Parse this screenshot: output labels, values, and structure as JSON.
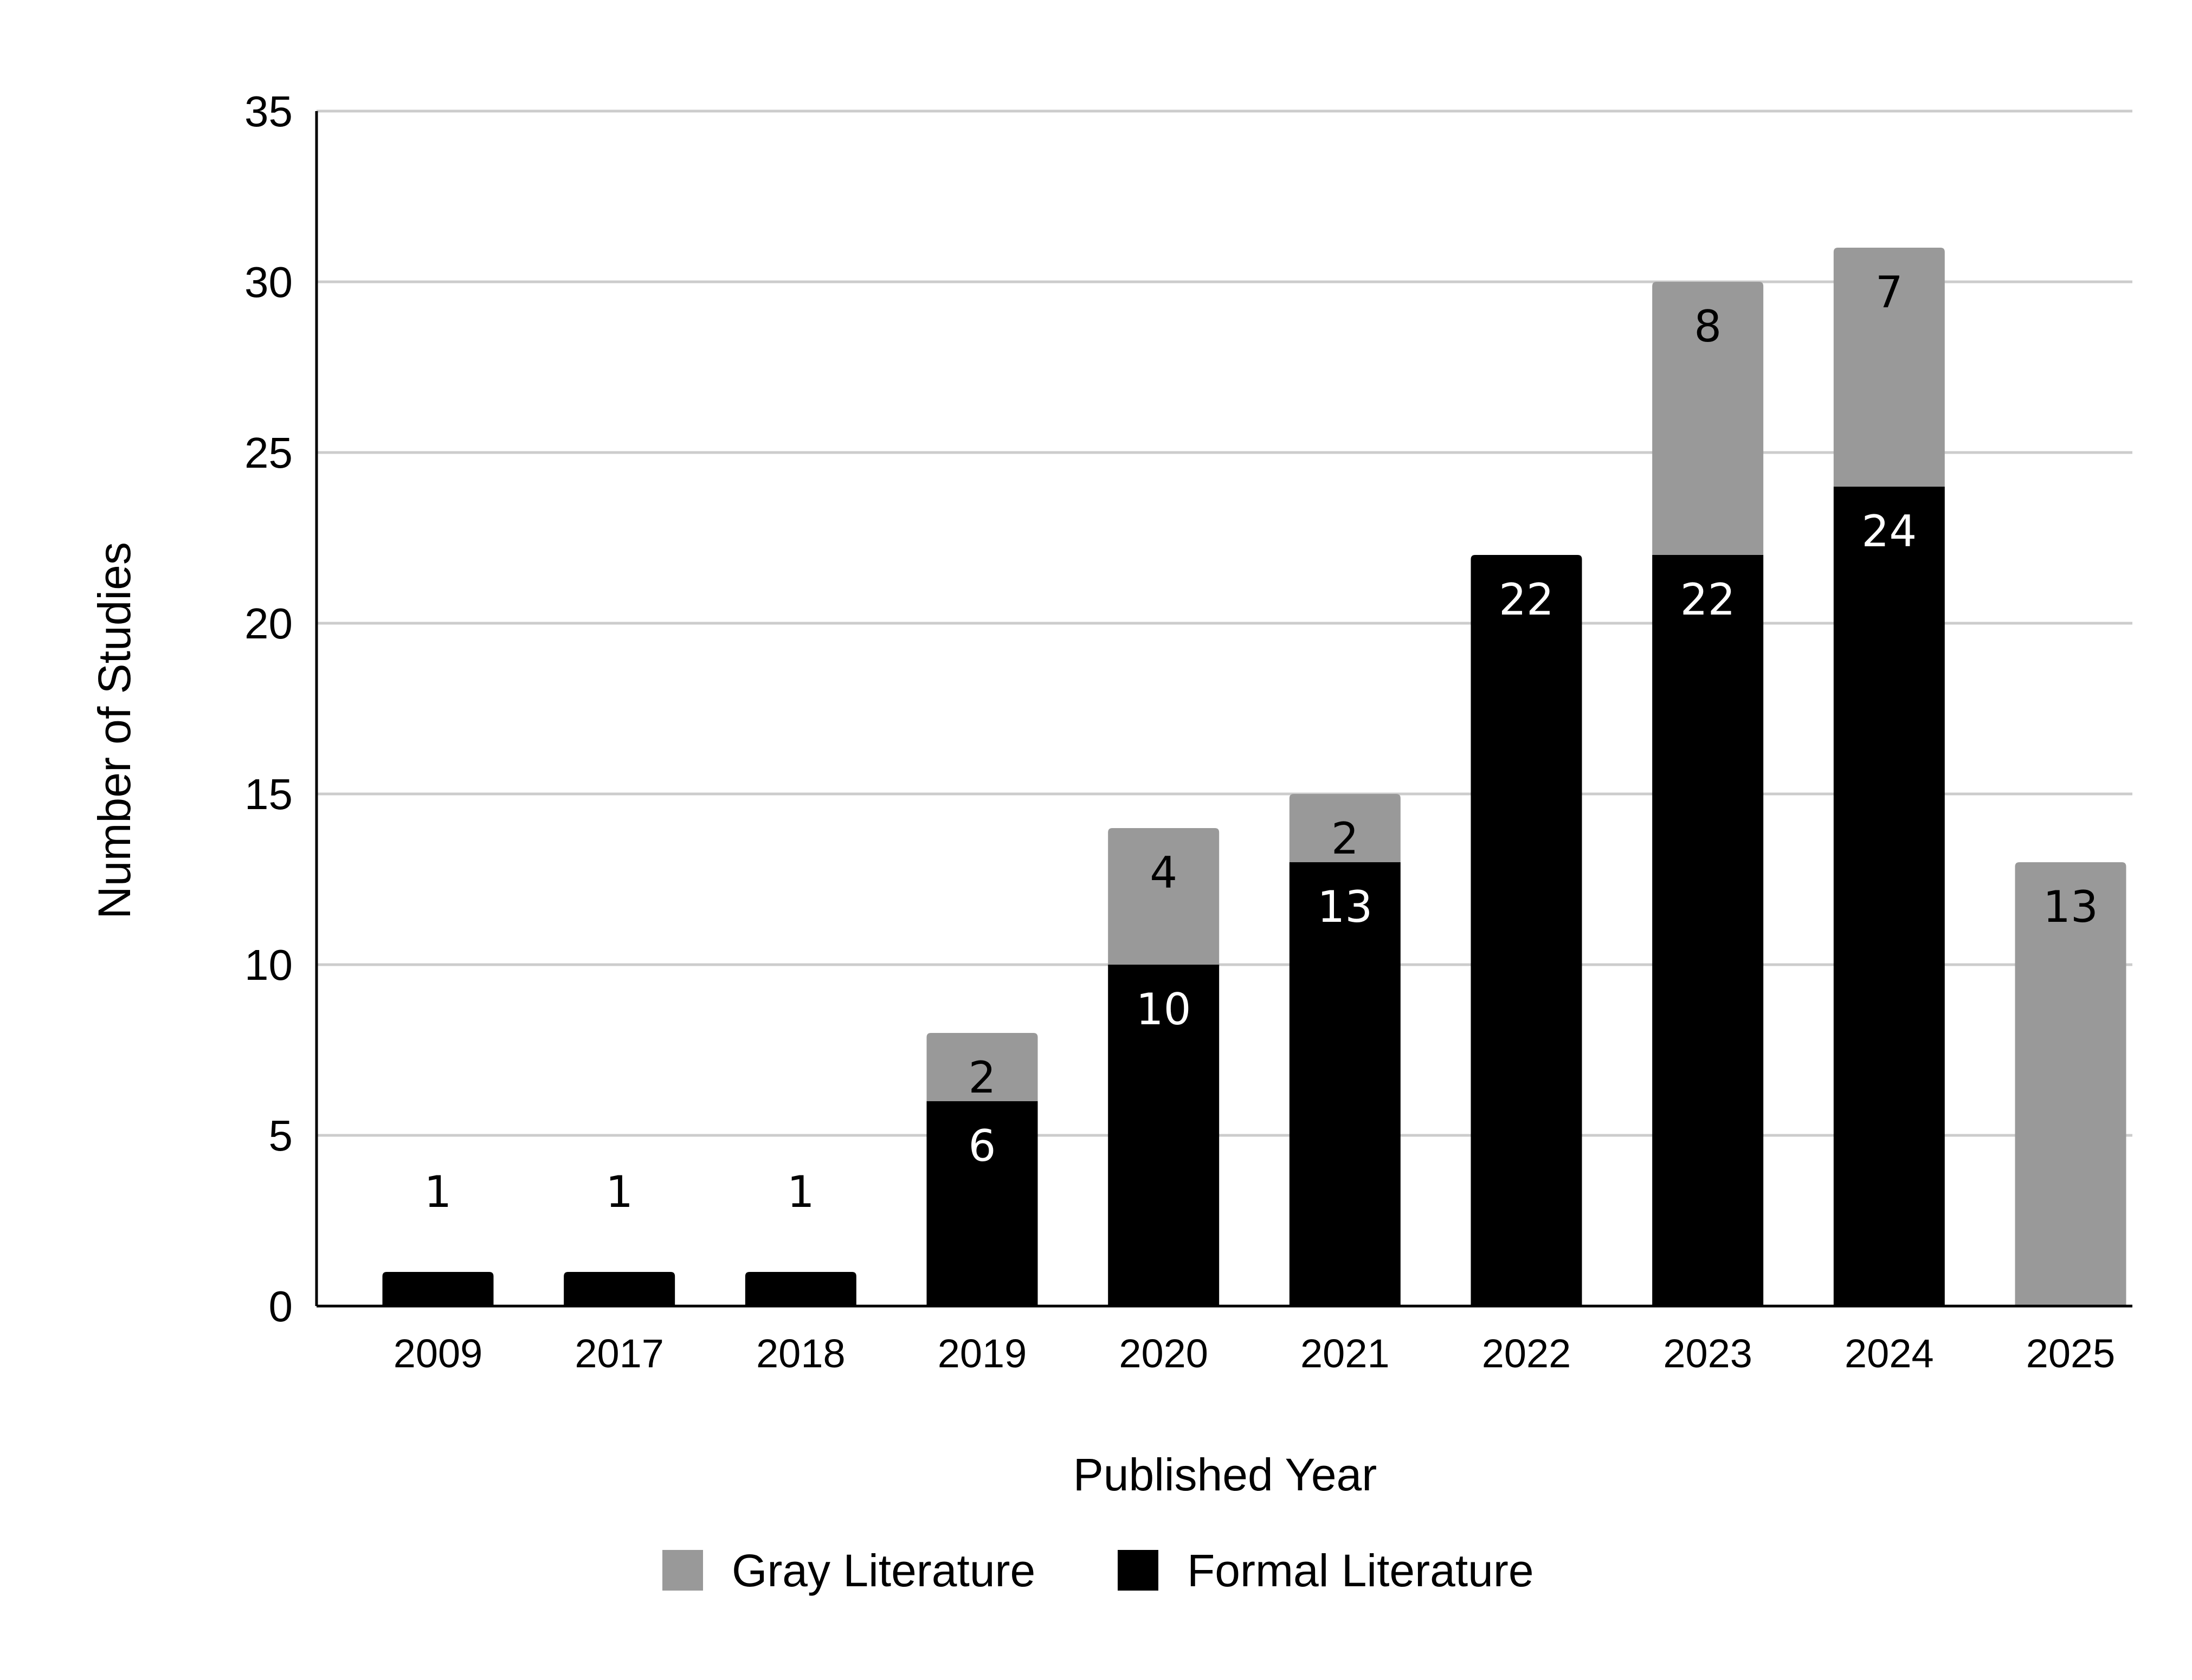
{
  "chart_data": {
    "type": "bar",
    "stacked": true,
    "categories": [
      "2009",
      "2017",
      "2018",
      "2019",
      "2020",
      "2021",
      "2022",
      "2023",
      "2024",
      "2025"
    ],
    "series": [
      {
        "name": "Formal Literature",
        "color": "#000000",
        "label_color": "#ffffff",
        "values": [
          1,
          1,
          1,
          6,
          10,
          13,
          22,
          22,
          24,
          0
        ]
      },
      {
        "name": "Gray Literature",
        "color": "#999999",
        "label_color": "#000000",
        "values": [
          0,
          0,
          0,
          2,
          4,
          2,
          0,
          8,
          7,
          13
        ]
      }
    ],
    "title": "",
    "xlabel": "Published Year",
    "ylabel": "Number of Studies",
    "ylim": [
      0,
      35
    ],
    "yticks": [
      0,
      5,
      10,
      15,
      20,
      25,
      30,
      35
    ],
    "grid": true,
    "legend": {
      "position": "bottom",
      "order": [
        "Gray Literature",
        "Formal Literature"
      ]
    }
  },
  "colors": {
    "gridline": "#cccccc",
    "axis": "#000000"
  }
}
